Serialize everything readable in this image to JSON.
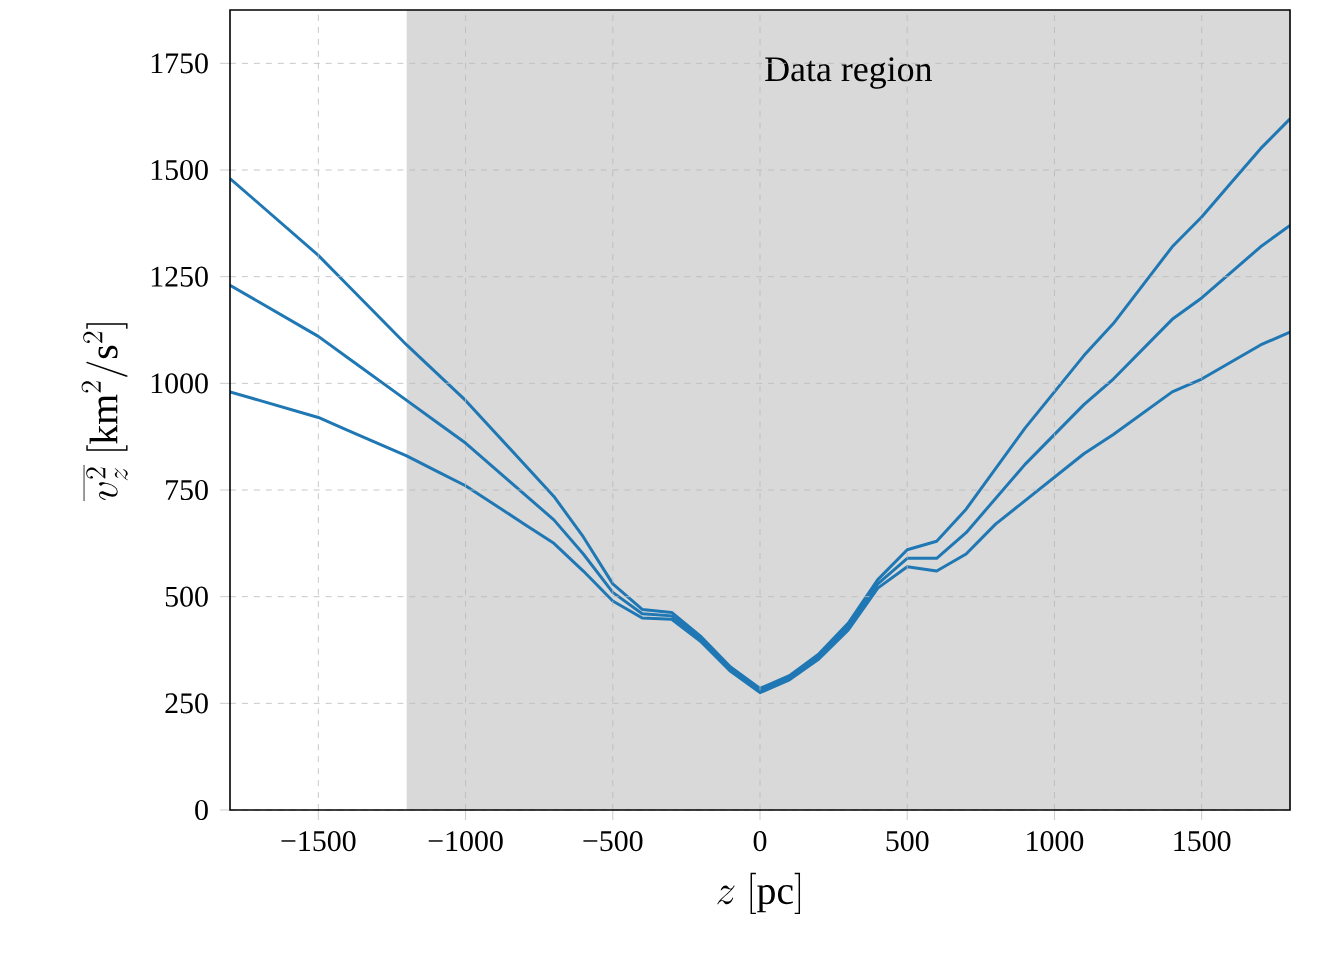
{
  "chart_data": {
    "type": "line",
    "xlabel": "z\\ [\\mathrm{pc}]",
    "ylabel": "\\overline{v_z^2}\\ [\\mathrm{km}^2/\\mathrm{s}^2]",
    "x": [
      -1800,
      -1700,
      -1600,
      -1500,
      -1400,
      -1300,
      -1200,
      -1100,
      -1000,
      -900,
      -800,
      -700,
      -600,
      -500,
      -400,
      -300,
      -200,
      -100,
      0,
      100,
      200,
      300,
      400,
      500,
      600,
      700,
      800,
      900,
      1000,
      1100,
      1200,
      1300,
      1400,
      1500,
      1600,
      1700,
      1800
    ],
    "series": [
      {
        "color": "#1f77b4",
        "values": [
          1480,
          1420,
          1360,
          1300,
          1230,
          1160,
          1090,
          1025,
          960,
          885,
          810,
          735,
          640,
          530,
          470,
          463,
          406,
          335,
          285,
          315,
          366,
          438,
          540,
          610,
          630,
          705,
          800,
          895,
          980,
          1065,
          1140,
          1230,
          1320,
          1390,
          1470,
          1550,
          1620
        ]
      },
      {
        "color": "#1f77b4",
        "values": [
          1230,
          1190,
          1150,
          1110,
          1060,
          1010,
          960,
          910,
          860,
          800,
          740,
          680,
          600,
          510,
          460,
          455,
          400,
          330,
          280,
          310,
          360,
          430,
          530,
          590,
          590,
          650,
          730,
          810,
          880,
          950,
          1010,
          1080,
          1150,
          1200,
          1260,
          1320,
          1370
        ]
      },
      {
        "color": "#1f77b4",
        "values": [
          980,
          960,
          940,
          920,
          890,
          860,
          830,
          795,
          760,
          715,
          670,
          625,
          560,
          490,
          450,
          447,
          394,
          325,
          275,
          305,
          354,
          422,
          520,
          570,
          560,
          600,
          670,
          725,
          780,
          835,
          880,
          930,
          980,
          1010,
          1050,
          1090,
          1120
        ]
      }
    ],
    "xlim": [
      -1800,
      1800
    ],
    "ylim": [
      0,
      1875
    ],
    "xticks": [
      {
        "value": -1500,
        "label": "−1500"
      },
      {
        "value": -1000,
        "label": "−1000"
      },
      {
        "value": -500,
        "label": "−500"
      },
      0,
      500,
      1000,
      1500
    ],
    "yticks": [
      0,
      250,
      500,
      750,
      1000,
      1250,
      1500,
      1750
    ],
    "bands": [
      {
        "axis": "x",
        "from": -1200,
        "to": 1800,
        "label": "Data region",
        "color": "#d9d9d9"
      }
    ],
    "grid": true,
    "marker": "none",
    "line_style": "solid"
  }
}
